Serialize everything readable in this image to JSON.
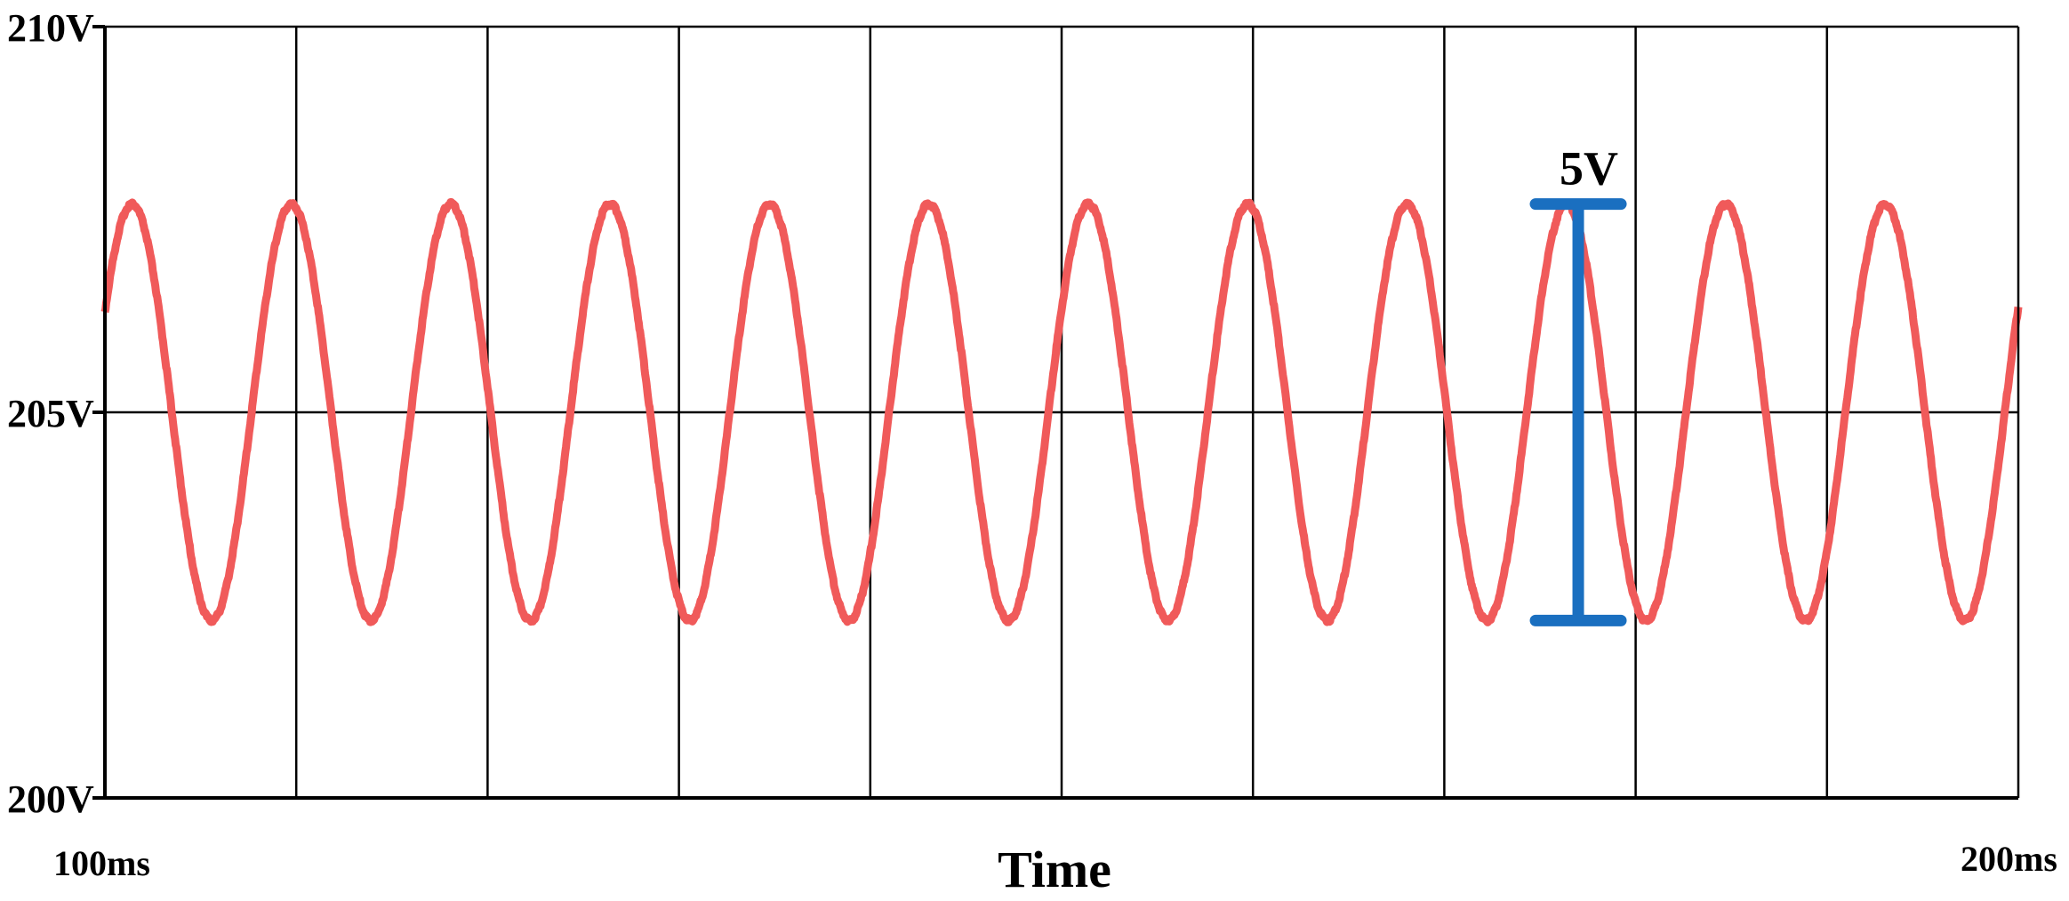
{
  "chart_data": {
    "type": "line",
    "title": "",
    "xlabel": "Time",
    "ylabel": "",
    "xlim": [
      100,
      200
    ],
    "ylim": [
      200,
      210
    ],
    "x_tick_labels": [
      "100ms",
      "200ms"
    ],
    "y_tick_labels": [
      "200V",
      "205V",
      "210V"
    ],
    "grid": true,
    "vertical_divisions": 10,
    "series": [
      {
        "color": "#f05a5a",
        "waveform": "sine",
        "offset": 205.0,
        "amplitude": 2.7,
        "period_ms": 8.33,
        "x_start": 100,
        "x_end": 200,
        "start_value": 206.3
      }
    ],
    "annotations": [
      {
        "label": "5V",
        "x": 177,
        "y_top": 207.7,
        "y_bottom": 202.3,
        "color": "#1a6fc0"
      }
    ]
  }
}
